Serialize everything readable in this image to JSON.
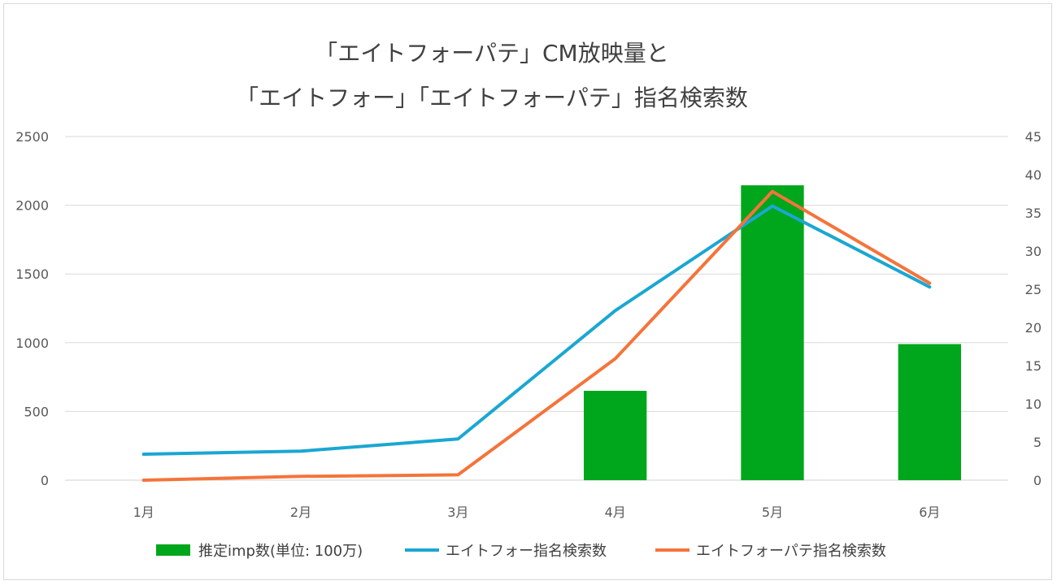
{
  "chart_data": {
    "type": "bar+line",
    "title_line1": "「エイトフォーパテ」CM放映量と",
    "title_line2": "「エイトフォー」「エイトフォーパテ」指名検索数",
    "categories": [
      "1月",
      "2月",
      "3月",
      "4月",
      "5月",
      "6月"
    ],
    "y_left": {
      "ylim": [
        0,
        2500
      ],
      "ticks": [
        "0",
        "500",
        "1000",
        "1500",
        "2000",
        "2500"
      ]
    },
    "y_right": {
      "ylim": [
        0,
        45
      ],
      "ticks": [
        "0",
        "5",
        "10",
        "15",
        "20",
        "25",
        "30",
        "35",
        "40",
        "45"
      ]
    },
    "grid": true,
    "legend_position": "bottom",
    "series": [
      {
        "name": "推定imp数(単位: 100万)",
        "type": "bar",
        "axis": "left",
        "color": "#00a61b",
        "values": [
          0,
          0,
          0,
          650,
          2145,
          990
        ]
      },
      {
        "name": "エイトフォー指名検索数",
        "type": "line",
        "axis": "right",
        "color": "#1aa7d2",
        "values": [
          3.4,
          3.8,
          5.4,
          22.2,
          35.9,
          25.3
        ]
      },
      {
        "name": "エイトフォーパテ指名検索数",
        "type": "line",
        "axis": "right",
        "color": "#f4743b",
        "values": [
          0,
          0.5,
          0.7,
          15.9,
          37.8,
          25.8
        ]
      }
    ]
  }
}
